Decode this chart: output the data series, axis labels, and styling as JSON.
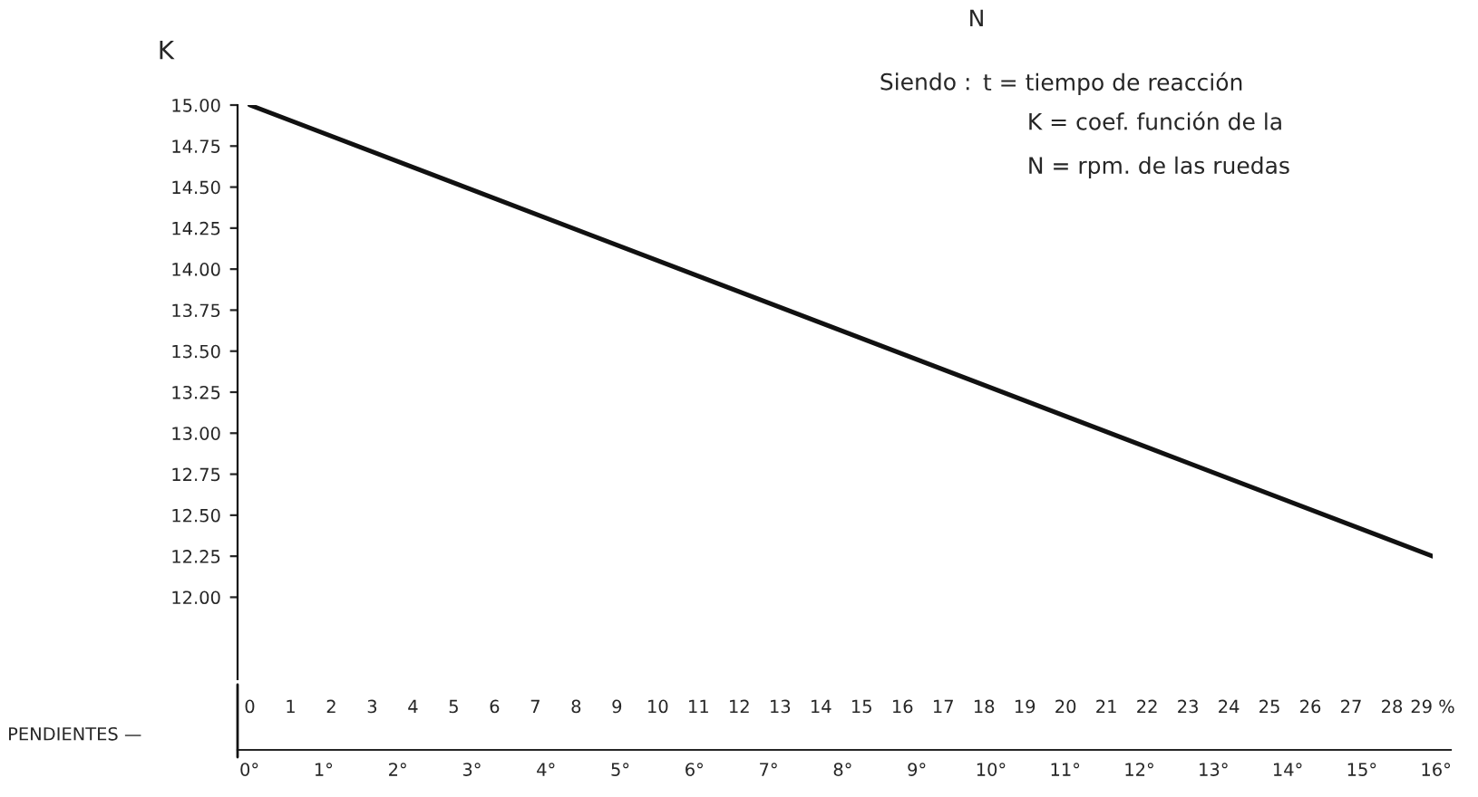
{
  "chart_data": {
    "type": "line",
    "ylabel": "K",
    "xlabel": "PENDIENTES —",
    "x": [
      0,
      29
    ],
    "series": [
      {
        "color": "#111111",
        "values": [
          15.0,
          12.25
        ]
      }
    ],
    "xlim": [
      -0.3,
      29
    ],
    "xticks": [
      0,
      1,
      2,
      3,
      4,
      5,
      6,
      7,
      8,
      9,
      10,
      11,
      12,
      13,
      14,
      15,
      16,
      17,
      18,
      19,
      20,
      21,
      22,
      23,
      24,
      25,
      26,
      27,
      28,
      {
        "value": 29,
        "label": "29 %"
      }
    ],
    "ylim": [
      11.5,
      15.0
    ],
    "yticks": [
      {
        "value": 12,
        "label": "12.00"
      },
      {
        "value": 12.25,
        "label": "12.25"
      },
      {
        "value": 12.5,
        "label": "12.50"
      },
      {
        "value": 12.75,
        "label": "12.75"
      },
      {
        "value": 13,
        "label": "13.00"
      },
      {
        "value": 13.25,
        "label": "13.25"
      },
      {
        "value": 13.5,
        "label": "13.50"
      },
      {
        "value": 13.75,
        "label": "13.75"
      },
      {
        "value": 14,
        "label": "14.00"
      },
      {
        "value": 14.25,
        "label": "14.25"
      },
      {
        "value": 14.5,
        "label": "14.50"
      },
      {
        "value": 14.75,
        "label": "14.75"
      },
      {
        "value": 15,
        "label": "15.00"
      }
    ],
    "x2lim": [
      -0.16,
      16.2
    ],
    "x2ticks": [
      {
        "value": 0,
        "label": "0°"
      },
      {
        "value": 1,
        "label": "1°"
      },
      {
        "value": 2,
        "label": "2°"
      },
      {
        "value": 3,
        "label": "3°"
      },
      {
        "value": 4,
        "label": "4°"
      },
      {
        "value": 5,
        "label": "5°"
      },
      {
        "value": 6,
        "label": "6°"
      },
      {
        "value": 7,
        "label": "7°"
      },
      {
        "value": 8,
        "label": "8°"
      },
      {
        "value": 9,
        "label": "9°"
      },
      {
        "value": 10,
        "label": "10°"
      },
      {
        "value": 11,
        "label": "11°"
      },
      {
        "value": 12,
        "label": "12°"
      },
      {
        "value": 13,
        "label": "13°"
      },
      {
        "value": 14,
        "label": "14°"
      },
      {
        "value": 15,
        "label": "15°"
      },
      {
        "value": 16,
        "label": "16°"
      }
    ],
    "annotations": [
      "N",
      "Siendo :",
      "t = tiempo de reacción",
      "K = coef. función de la",
      "N = rpm. de las ruedas"
    ],
    "grid": false,
    "legend": false,
    "marker": "none",
    "line_style": "solid"
  }
}
